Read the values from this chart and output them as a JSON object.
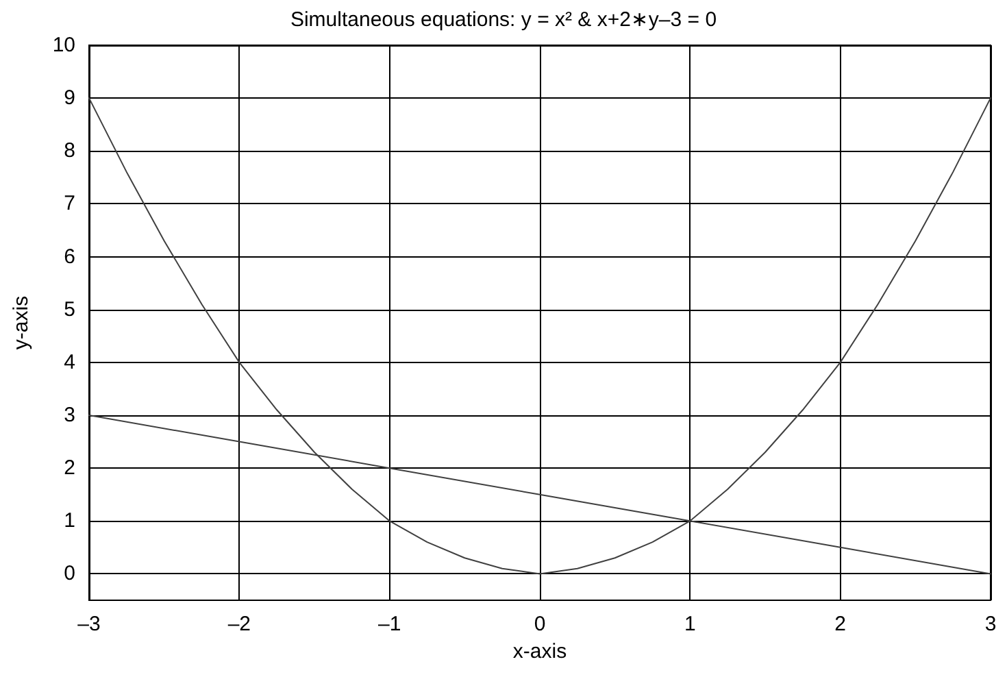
{
  "chart_data": {
    "type": "line",
    "title": "Simultaneous equations: y = x² & x+2∗y–3 = 0",
    "xlabel": "x-axis",
    "ylabel": "y-axis",
    "series": [
      {
        "color": "#404040",
        "x": [
          -3,
          -2.75,
          -2.5,
          -2.25,
          -2,
          -1.75,
          -1.5,
          -1.25,
          -1,
          -0.75,
          -0.5,
          -0.25,
          0,
          0.25,
          0.5,
          0.75,
          1,
          1.25,
          1.5,
          1.75,
          2,
          2.25,
          2.5,
          2.75,
          3
        ],
        "values": [
          9,
          7.6,
          6.3,
          5.1,
          4,
          3.1,
          2.3,
          1.6,
          1,
          0.6,
          0.3,
          0.1,
          0,
          0.1,
          0.3,
          0.6,
          1,
          1.6,
          2.3,
          3.1,
          4,
          5.1,
          6.3,
          7.6,
          9
        ]
      },
      {
        "color": "#404040",
        "x": [
          -3,
          -2,
          -1,
          0,
          1,
          2,
          3
        ],
        "values": [
          3,
          2.5,
          2,
          1.5,
          1,
          0.5,
          0
        ]
      }
    ],
    "xlim": [
      -3,
      3
    ],
    "ylim": [
      -0.5,
      10
    ],
    "xticks": [
      {
        "value": -3,
        "label": "–3"
      },
      {
        "value": -2,
        "label": "–2"
      },
      {
        "value": -1,
        "label": "–1"
      },
      0,
      1,
      2,
      3
    ],
    "yticks": [
      0,
      1,
      2,
      3,
      4,
      5,
      6,
      7,
      8,
      9,
      10
    ],
    "grid": true,
    "marker": "none",
    "line_style": "solid"
  }
}
